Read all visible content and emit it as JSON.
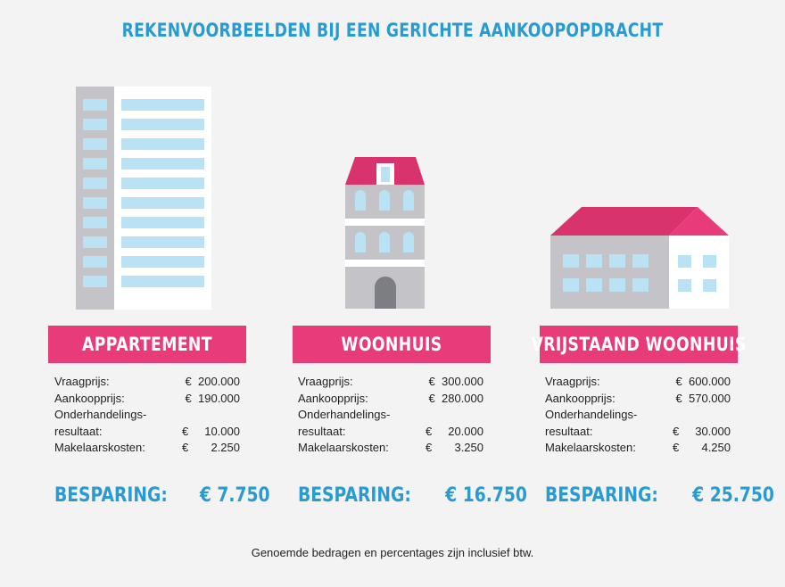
{
  "title": "REKENVOORBEELDEN BIJ EEN GERICHTE AANKOOPOPDRACHT",
  "colors": {
    "accent_blue": "#2a9bd1",
    "banner_pink": "#e83c7a",
    "roof_pink": "#d9336e",
    "building_gray": "#c3c3c8",
    "window_blue": "#b9e2f5",
    "background": "#f3f3f3"
  },
  "examples": [
    {
      "name": "APPARTEMENT",
      "icon": "apartment-building-icon",
      "rows": [
        {
          "label": "Vraagprijs:",
          "value": "€  200.000"
        },
        {
          "label": "Aankoopprijs:",
          "value": "€  190.000"
        },
        {
          "label": "Onderhandelings-",
          "value": ""
        },
        {
          "label": "resultaat:",
          "value": "€     10.000"
        },
        {
          "label": "Makelaarskosten:",
          "value": "€       2.250"
        }
      ],
      "saving_label": "BESPARING:",
      "saving_amount": "€ 7.750"
    },
    {
      "name": "WOONHUIS",
      "icon": "townhouse-icon",
      "rows": [
        {
          "label": "Vraagprijs:",
          "value": "€  300.000"
        },
        {
          "label": "Aankoopprijs:",
          "value": "€  280.000"
        },
        {
          "label": "Onderhandelings-",
          "value": ""
        },
        {
          "label": "resultaat:",
          "value": "€     20.000"
        },
        {
          "label": "Makelaarskosten:",
          "value": "€       3.250"
        }
      ],
      "saving_label": "BESPARING:",
      "saving_amount": "€ 16.750"
    },
    {
      "name": "VRIJSTAAND WOONHUIS",
      "icon": "detached-house-icon",
      "rows": [
        {
          "label": "Vraagprijs:",
          "value": "€  600.000"
        },
        {
          "label": "Aankoopprijs:",
          "value": "€  570.000"
        },
        {
          "label": "Onderhandelings-",
          "value": ""
        },
        {
          "label": "resultaat:",
          "value": "€     30.000"
        },
        {
          "label": "Makelaarskosten:",
          "value": "€       4.250"
        }
      ],
      "saving_label": "BESPARING:",
      "saving_amount": "€ 25.750"
    }
  ],
  "footnote": "Genoemde bedragen en percentages zijn inclusief btw."
}
